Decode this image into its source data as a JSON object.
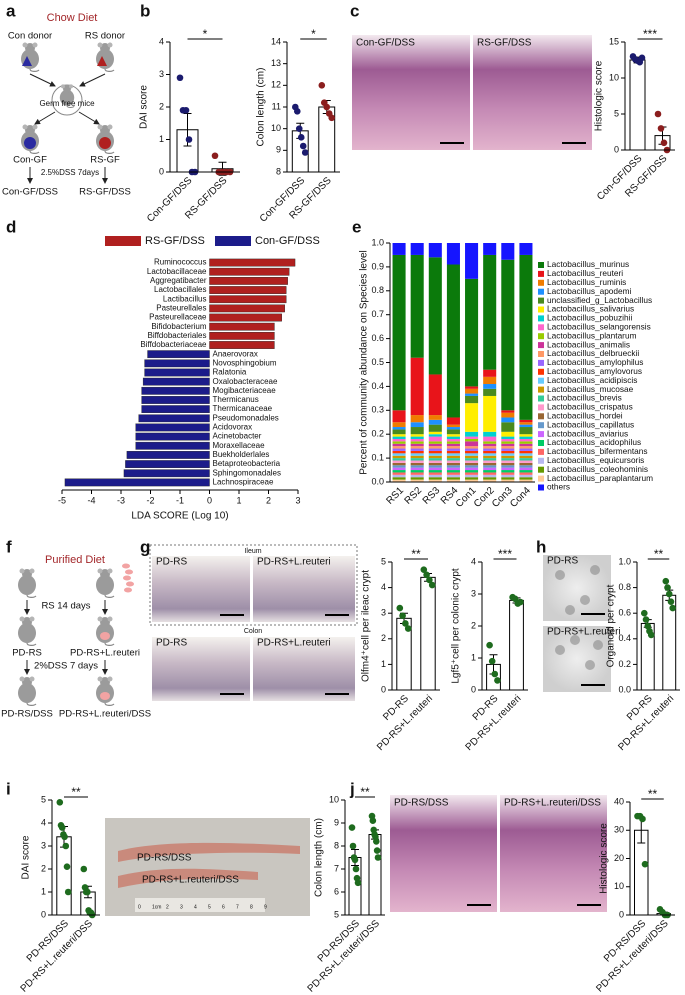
{
  "panel_labels": [
    "a",
    "b",
    "c",
    "d",
    "e",
    "f",
    "g",
    "h",
    "i",
    "j"
  ],
  "diagram_a": {
    "title": "Chow Diet",
    "donors": [
      "Con donor",
      "RS donor"
    ],
    "recipient": "Germ free mice",
    "groups": [
      "Con-GF",
      "RS-GF"
    ],
    "treatment": "2.5%DSS 7days",
    "outcomes": [
      "Con-GF/DSS",
      "RS-GF/DSS"
    ]
  },
  "diagram_f": {
    "title": "Purified Diet",
    "step": "RS 14 days",
    "groups": [
      "PD-RS",
      "PD-RS+L.reuteri"
    ],
    "treatment": "2%DSS 7 days",
    "outcomes": [
      "PD-RS/DSS",
      "PD-RS+L.reuteri/DSS"
    ]
  },
  "images": {
    "c": [
      "Con-GF/DSS",
      "RS-GF/DSS"
    ],
    "g": {
      "ileum": "Ileum",
      "colon": "Colon",
      "labels": [
        "PD-RS",
        "PD-RS+L.reuteri",
        "PD-RS",
        "PD-RS+L.reuteri"
      ]
    },
    "h": [
      "PD-RS",
      "PD-RS+L.reuteri"
    ],
    "i": {
      "labels": [
        "PD-RS/DSS",
        "PD-RS+L.reuteri/DSS"
      ],
      "ruler": [
        "0",
        "1cm",
        "2",
        "3",
        "4",
        "5",
        "6",
        "7",
        "8",
        "9"
      ]
    },
    "j": [
      "PD-RS/DSS",
      "PD-RS+L.reuteri/DSS"
    ]
  },
  "chart_data": [
    {
      "type": "dotbar",
      "y_label": "DAI score",
      "categories": [
        "Con-GF/DSS",
        "RS-GF/DSS"
      ],
      "groups": [
        {
          "color": "#1b1b6e",
          "mean": 1.3,
          "error": 0.5,
          "points": [
            2.9,
            1.9,
            1.9,
            1.0,
            0,
            0
          ]
        },
        {
          "color": "#8b1e1e",
          "mean": 0.1,
          "error": 0.2,
          "points": [
            0.5,
            0,
            0,
            0,
            0
          ]
        }
      ],
      "ylim": [
        0,
        4
      ],
      "yticks": [
        0,
        1,
        2,
        3,
        4
      ],
      "significance": "*"
    },
    {
      "type": "dotbar",
      "y_label": "Colon length (cm)",
      "categories": [
        "Con-GF/DSS",
        "RS-GF/DSS"
      ],
      "groups": [
        {
          "color": "#1b1b6e",
          "mean": 9.9,
          "error": 0.35,
          "points": [
            11.0,
            10.8,
            10.0,
            9.6,
            9.2,
            8.9
          ]
        },
        {
          "color": "#8b1e1e",
          "mean": 11.0,
          "error": 0.3,
          "points": [
            12.0,
            11.2,
            11.0,
            10.7,
            10.5
          ]
        }
      ],
      "ylim": [
        8,
        14
      ],
      "yticks": [
        8,
        9,
        10,
        11,
        12,
        13,
        14
      ],
      "significance": "*"
    },
    {
      "type": "dotbar",
      "y_label": "Histologic score",
      "categories": [
        "Con-GF/DSS",
        "RS-GF/DSS"
      ],
      "groups": [
        {
          "color": "#1b1b6e",
          "mean": 12.5,
          "error": 0.4,
          "points": [
            13,
            12.6,
            12.4,
            12.2,
            12.8
          ]
        },
        {
          "color": "#8b1e1e",
          "mean": 2.0,
          "error": 1.2,
          "points": [
            5,
            3,
            1,
            0
          ]
        }
      ],
      "ylim": [
        0,
        15
      ],
      "yticks": [
        0,
        5,
        10,
        15
      ],
      "significance": "***"
    },
    {
      "type": "hbar",
      "x_label": "LDA SCORE (Log 10)",
      "xlim": [
        -5,
        3
      ],
      "xticks": [
        -5,
        -4,
        -3,
        -2,
        -1,
        0,
        1,
        2,
        3
      ],
      "series": [
        {
          "name": "RS-GF/DSS",
          "color": "#b0201f",
          "categories": [
            "Ruminococcus",
            "Lactobacillaceae",
            "Aggregatibacter",
            "Lactobacillales",
            "Lactibacillus",
            "Pasteurellales",
            "Pasteurellaceae",
            "Bifidobacterium",
            "Biffdobacteriales",
            "Biffdobacteriaceae"
          ],
          "values": [
            2.9,
            2.7,
            2.65,
            2.6,
            2.6,
            2.55,
            2.45,
            2.2,
            2.2,
            2.2
          ]
        },
        {
          "name": "Con-GF/DSS",
          "color": "#1c1c8a",
          "categories": [
            "Anaerovorax",
            "Novosphingobium",
            "Ralatonia",
            "Oxalobacteraceae",
            "Mogibacteriaceae",
            "Thermicanus",
            "Thermicanaceae",
            "Pseudomonadales",
            "Acidovorax",
            "Acinetobacter",
            "Moraxellaceae",
            "Buekholderlales",
            "Betaproteobacteria",
            "Sphingomonadales",
            "Lachnospiraceae"
          ],
          "values": [
            -2.1,
            -2.2,
            -2.2,
            -2.25,
            -2.3,
            -2.3,
            -2.3,
            -2.4,
            -2.5,
            -2.5,
            -2.5,
            -2.8,
            -2.85,
            -2.9,
            -4.9
          ]
        }
      ]
    },
    {
      "type": "stacked_bar",
      "y_label": "Percent of community abundance on Species level",
      "categories": [
        "RS1",
        "RS2",
        "RS3",
        "RS4",
        "Con1",
        "Con2",
        "Con3",
        "Con4"
      ],
      "ylim": [
        0,
        1
      ],
      "yticks": [
        {
          "value": 0,
          "label": "0.0"
        },
        0.1,
        0.2,
        0.3,
        0.4,
        0.5,
        0.6,
        0.7,
        0.8,
        0.9,
        {
          "value": 1,
          "label": "1.0"
        }
      ],
      "series": [
        {
          "name": "Lactobacillus_murinus",
          "color": "#0b7a0b",
          "values": [
            0.65,
            0.43,
            0.49,
            0.64,
            0.45,
            0.48,
            0.63,
            0.69
          ]
        },
        {
          "name": "Lactobacillus_reuteri",
          "color": "#e8141a",
          "values": [
            0.05,
            0.24,
            0.17,
            0.03,
            0.01,
            0.03,
            0.01,
            0.01
          ]
        },
        {
          "name": "Lactobacillus_ruminis",
          "color": "#f07c00",
          "values": [
            0.02,
            0.03,
            0.02,
            0.01,
            0.02,
            0.03,
            0.02,
            0.01
          ]
        },
        {
          "name": "Lactobacillus_apodemi",
          "color": "#1e90ff",
          "values": [
            0.01,
            0.02,
            0.02,
            0.01,
            0.01,
            0.02,
            0.02,
            0.01
          ]
        },
        {
          "name": "unclassified_g_Lactobacillus",
          "color": "#4a8a1e",
          "values": [
            0.02,
            0.03,
            0.03,
            0.02,
            0.03,
            0.03,
            0.04,
            0.03
          ]
        },
        {
          "name": "Lactobacillus_salivarius",
          "color": "#ffee00",
          "values": [
            0.01,
            0.01,
            0.01,
            0.01,
            0.12,
            0.15,
            0.02,
            0.01
          ]
        },
        {
          "name": "Lactobacillus_pobuzihii",
          "color": "#00d0d0",
          "values": [
            0.01,
            0.01,
            0.01,
            0.01,
            0.02,
            0.02,
            0.01,
            0.01
          ]
        },
        {
          "name": "Lactobacillus_selangorensis",
          "color": "#ff66cc",
          "values": [
            0.01,
            0.01,
            0.02,
            0.01,
            0.01,
            0.02,
            0.01,
            0.01
          ]
        },
        {
          "name": "Lactobacillus_plantarum",
          "color": "#99cc00",
          "values": [
            0.01,
            0.01,
            0.01,
            0.01,
            0.01,
            0.01,
            0.01,
            0.01
          ]
        },
        {
          "name": "Lactobacillus_animalis",
          "color": "#cc3399",
          "values": [
            0.01,
            0.01,
            0.01,
            0.01,
            0.02,
            0.01,
            0.01,
            0.01
          ]
        },
        {
          "name": "Lactobacillus_delbrueckii",
          "color": "#ff9966",
          "values": [
            0.01,
            0.01,
            0.01,
            0.01,
            0.01,
            0.01,
            0.01,
            0.01
          ]
        },
        {
          "name": "Lactobacillus_amylophilus",
          "color": "#9966ff",
          "values": [
            0.01,
            0.01,
            0.01,
            0.01,
            0.01,
            0.01,
            0.01,
            0.01
          ]
        },
        {
          "name": "Lactobacillus_amylovorus",
          "color": "#ff3300",
          "values": [
            0.01,
            0.01,
            0.01,
            0.01,
            0.01,
            0.01,
            0.01,
            0.01
          ]
        },
        {
          "name": "Lactobacillus_acidipiscis",
          "color": "#66ccff",
          "values": [
            0.01,
            0.01,
            0.01,
            0.01,
            0.01,
            0.01,
            0.01,
            0.01
          ]
        },
        {
          "name": "Lactobacillus_mucosae",
          "color": "#cc9900",
          "values": [
            0.01,
            0.01,
            0.01,
            0.01,
            0.01,
            0.01,
            0.01,
            0.01
          ]
        },
        {
          "name": "Lactobacillus_brevis",
          "color": "#33cc99",
          "values": [
            0.01,
            0.01,
            0.01,
            0.01,
            0.01,
            0.01,
            0.01,
            0.01
          ]
        },
        {
          "name": "Lactobacillus_crispatus",
          "color": "#ff99cc",
          "values": [
            0.01,
            0.01,
            0.01,
            0.01,
            0.01,
            0.01,
            0.01,
            0.01
          ]
        },
        {
          "name": "Lactobacillus_hordei",
          "color": "#996633",
          "values": [
            0.01,
            0.01,
            0.01,
            0.01,
            0.01,
            0.01,
            0.01,
            0.01
          ]
        },
        {
          "name": "Lactobacillus_capillatus",
          "color": "#6699cc",
          "values": [
            0.01,
            0.01,
            0.01,
            0.01,
            0.01,
            0.01,
            0.01,
            0.01
          ]
        },
        {
          "name": "Lactobacillus_aviarius",
          "color": "#cc66ff",
          "values": [
            0.01,
            0.01,
            0.01,
            0.01,
            0.01,
            0.01,
            0.01,
            0.01
          ]
        },
        {
          "name": "Lactobacillus_acidophilus",
          "color": "#00cc66",
          "values": [
            0.01,
            0.01,
            0.01,
            0.01,
            0.01,
            0.01,
            0.01,
            0.01
          ]
        },
        {
          "name": "Lactobacillus_bifermentans",
          "color": "#ff6666",
          "values": [
            0.01,
            0.01,
            0.01,
            0.01,
            0.01,
            0.01,
            0.01,
            0.01
          ]
        },
        {
          "name": "Lactobacillus_equicursoris",
          "color": "#b8b8f0",
          "values": [
            0.01,
            0.01,
            0.01,
            0.01,
            0.01,
            0.01,
            0.01,
            0.01
          ]
        },
        {
          "name": "Lactobacillus_coleohominis",
          "color": "#669900",
          "values": [
            0.01,
            0.01,
            0.01,
            0.01,
            0.01,
            0.01,
            0.01,
            0.01
          ]
        },
        {
          "name": "Lactobacillus_paraplantarum",
          "color": "#ffcc99",
          "values": [
            0.01,
            0.01,
            0.01,
            0.01,
            0.01,
            0.01,
            0.01,
            0.01
          ]
        },
        {
          "name": "others",
          "color": "#1515ff",
          "values": [
            0.05,
            0.05,
            0.06,
            0.09,
            0.15,
            0.05,
            0.07,
            0.05
          ]
        }
      ]
    },
    {
      "type": "dotbar",
      "y_label": "Olfm4⁺cell per ileac crypt",
      "categories": [
        "PD-RS",
        "PD-RS+L.reuteri"
      ],
      "groups": [
        {
          "color": "#1e6b1e",
          "mean": 2.8,
          "error": 0.2,
          "points": [
            3.2,
            2.9,
            2.6,
            2.4
          ]
        },
        {
          "color": "#1e6b1e",
          "mean": 4.4,
          "error": 0.15,
          "points": [
            4.7,
            4.5,
            4.3,
            4.1
          ]
        }
      ],
      "ylim": [
        0,
        5
      ],
      "yticks": [
        0,
        1,
        2,
        3,
        4,
        5
      ],
      "significance": "**"
    },
    {
      "type": "dotbar",
      "y_label": "Lgf5⁺cell per colonic crypt",
      "categories": [
        "PD-RS",
        "PD-RS+L.reuteri"
      ],
      "groups": [
        {
          "color": "#1e6b1e",
          "mean": 0.8,
          "error": 0.3,
          "points": [
            1.4,
            0.9,
            0.5,
            0.3
          ]
        },
        {
          "color": "#1e6b1e",
          "mean": 2.8,
          "error": 0.08,
          "points": [
            2.9,
            2.85,
            2.7,
            2.75
          ]
        }
      ],
      "ylim": [
        0,
        4
      ],
      "yticks": [
        0,
        1,
        2,
        3,
        4
      ],
      "significance": "***"
    },
    {
      "type": "dotbar",
      "y_label": "Organoid per crypt",
      "categories": [
        "PD-RS",
        "PD-RS+L.reuteri"
      ],
      "groups": [
        {
          "color": "#1e6b1e",
          "mean": 0.52,
          "error": 0.03,
          "points": [
            0.6,
            0.55,
            0.5,
            0.46,
            0.43
          ]
        },
        {
          "color": "#1e6b1e",
          "mean": 0.74,
          "error": 0.04,
          "points": [
            0.85,
            0.8,
            0.75,
            0.69,
            0.64
          ]
        }
      ],
      "ylim": [
        0,
        1
      ],
      "yticks": [
        {
          "value": 0,
          "label": "0.0"
        },
        0.2,
        0.4,
        0.6,
        0.8,
        {
          "value": 1,
          "label": "1.0"
        }
      ],
      "significance": "**"
    },
    {
      "type": "dotbar",
      "y_label": "DAI score",
      "categories": [
        "PD-RS/DSS",
        "PD-RS+L.reuteri/DSS"
      ],
      "groups": [
        {
          "color": "#1e6b1e",
          "mean": 3.4,
          "error": 0.45,
          "points": [
            4.9,
            3.9,
            3.8,
            3.5,
            3.4,
            3.0,
            2.1,
            1.0
          ]
        },
        {
          "color": "#1e6b1e",
          "mean": 1.0,
          "error": 0.25,
          "points": [
            2.0,
            1.2,
            1.0,
            1.0,
            0.2,
            0.1,
            0.1,
            0
          ]
        }
      ],
      "ylim": [
        0,
        5
      ],
      "yticks": [
        0,
        1,
        2,
        3,
        4,
        5
      ],
      "significance": "**"
    },
    {
      "type": "dotbar",
      "y_label": "Colon length (cm)",
      "categories": [
        "PD-RS/DSS",
        "PD-RS+L.reuteri/DSS"
      ],
      "groups": [
        {
          "color": "#1e6b1e",
          "mean": 7.5,
          "error": 0.35,
          "points": [
            8.8,
            8.0,
            7.5,
            7.4,
            7.0,
            6.6,
            6.4
          ]
        },
        {
          "color": "#1e6b1e",
          "mean": 8.5,
          "error": 0.2,
          "points": [
            9.3,
            9.1,
            8.7,
            8.5,
            8.4,
            8.2,
            7.8,
            7.5
          ]
        }
      ],
      "ylim": [
        5,
        10
      ],
      "yticks": [
        5,
        6,
        7,
        8,
        9,
        10
      ],
      "significance": "**"
    },
    {
      "type": "dotbar",
      "y_label": "Histologic score",
      "categories": [
        "PD-RS/DSS",
        "PD-RS+L.reuteri/DSS"
      ],
      "groups": [
        {
          "color": "#1e6b1e",
          "mean": 30,
          "error": 4.5,
          "points": [
            35,
            35,
            34,
            18
          ]
        },
        {
          "color": "#1e6b1e",
          "mean": 0.5,
          "error": 0.5,
          "points": [
            2,
            1,
            0,
            0
          ]
        }
      ],
      "ylim": [
        0,
        40
      ],
      "yticks": [
        0,
        10,
        20,
        30,
        40
      ],
      "significance": "**"
    }
  ]
}
